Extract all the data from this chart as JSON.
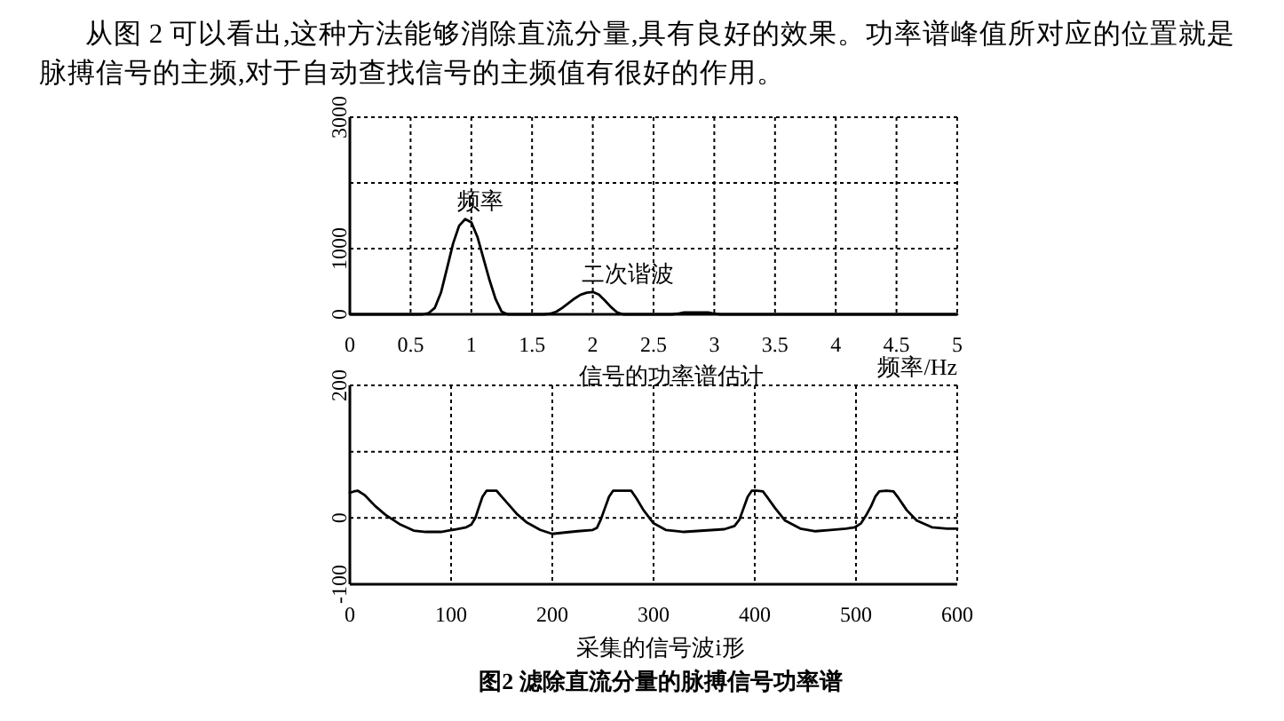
{
  "chart_data": [
    {
      "type": "line",
      "title": "信号的功率谱估计",
      "xlabel": "频率/Hz",
      "color": "#000000",
      "x": [
        0,
        0.5,
        0.6,
        0.65,
        0.7,
        0.75,
        0.8,
        0.85,
        0.9,
        0.95,
        1.0,
        1.05,
        1.1,
        1.15,
        1.2,
        1.25,
        1.3,
        1.6,
        1.65,
        1.7,
        1.75,
        1.8,
        1.85,
        1.9,
        1.95,
        2.0,
        2.05,
        2.1,
        2.15,
        2.2,
        2.25,
        2.65,
        2.7,
        2.75,
        2.95,
        3.0,
        3.05,
        5
      ],
      "values": [
        0,
        0,
        0,
        20,
        100,
        330,
        700,
        1080,
        1350,
        1450,
        1400,
        1180,
        850,
        520,
        230,
        40,
        0,
        0,
        10,
        40,
        100,
        170,
        240,
        300,
        330,
        340,
        300,
        210,
        110,
        30,
        0,
        0,
        10,
        30,
        30,
        10,
        0,
        0
      ],
      "xlim": [
        0,
        5
      ],
      "xticks": [
        0,
        0.5,
        1,
        1.5,
        2,
        2.5,
        3,
        3.5,
        4,
        4.5,
        5
      ],
      "ylim": [
        0,
        3000
      ],
      "yticks": [
        0,
        1000,
        {
          "value": 2000,
          "label": null
        },
        3000
      ],
      "grid": true,
      "annotations": [
        "从图 2 可以看出,这种方法能够消除直流分量,具有良好的效果。功率谱峰值所对应的位置就是脉搏信号的主频,对于自动查找信号的主频值有很好的作用。",
        {
          "text": "频率",
          "x": 0.96,
          "y": 1450
        },
        {
          "text": "二次谐波",
          "x": 1.98,
          "y": 340
        }
      ]
    },
    {
      "type": "line",
      "xlabel": "采集的信号波i形",
      "color": "#000000",
      "x": [
        0,
        4,
        8,
        15,
        25,
        35,
        50,
        63,
        75,
        90,
        105,
        115,
        120,
        124,
        127,
        131,
        135,
        140,
        145,
        150,
        157,
        165,
        175,
        188,
        200,
        212,
        225,
        240,
        244,
        248,
        252,
        256,
        260,
        270,
        278,
        283,
        290,
        300,
        312,
        330,
        350,
        370,
        380,
        385,
        389,
        393,
        397,
        402,
        408,
        413,
        420,
        430,
        445,
        460,
        475,
        490,
        499,
        505,
        510,
        515,
        519,
        523,
        530,
        537,
        542,
        550,
        560,
        575,
        590,
        600
      ],
      "values": [
        38,
        40,
        41,
        34,
        18,
        5,
        -10,
        -19,
        -21,
        -21,
        -17,
        -14,
        -10,
        0,
        14,
        32,
        41,
        41,
        41,
        32,
        20,
        6,
        -7,
        -18,
        -24,
        -22,
        -20,
        -18,
        -15,
        -2,
        15,
        32,
        41,
        41,
        41,
        30,
        12,
        -8,
        -18,
        -21,
        -19,
        -17,
        -12,
        -2,
        15,
        32,
        41,
        41,
        40,
        30,
        15,
        -4,
        -16,
        -20,
        -18,
        -16,
        -14,
        -8,
        4,
        18,
        32,
        40,
        41,
        40,
        30,
        12,
        -4,
        -14,
        -16,
        -16
      ],
      "xlim": [
        0,
        600
      ],
      "xticks": [
        0,
        100,
        200,
        300,
        400,
        500,
        600
      ],
      "ylim": [
        -100,
        200
      ],
      "yticks": [
        -100,
        0,
        {
          "value": 100,
          "label": null
        },
        200
      ],
      "grid": true,
      "annotations": [
        "图2 滤除直流分量的脉搏信号功率谱"
      ]
    }
  ]
}
